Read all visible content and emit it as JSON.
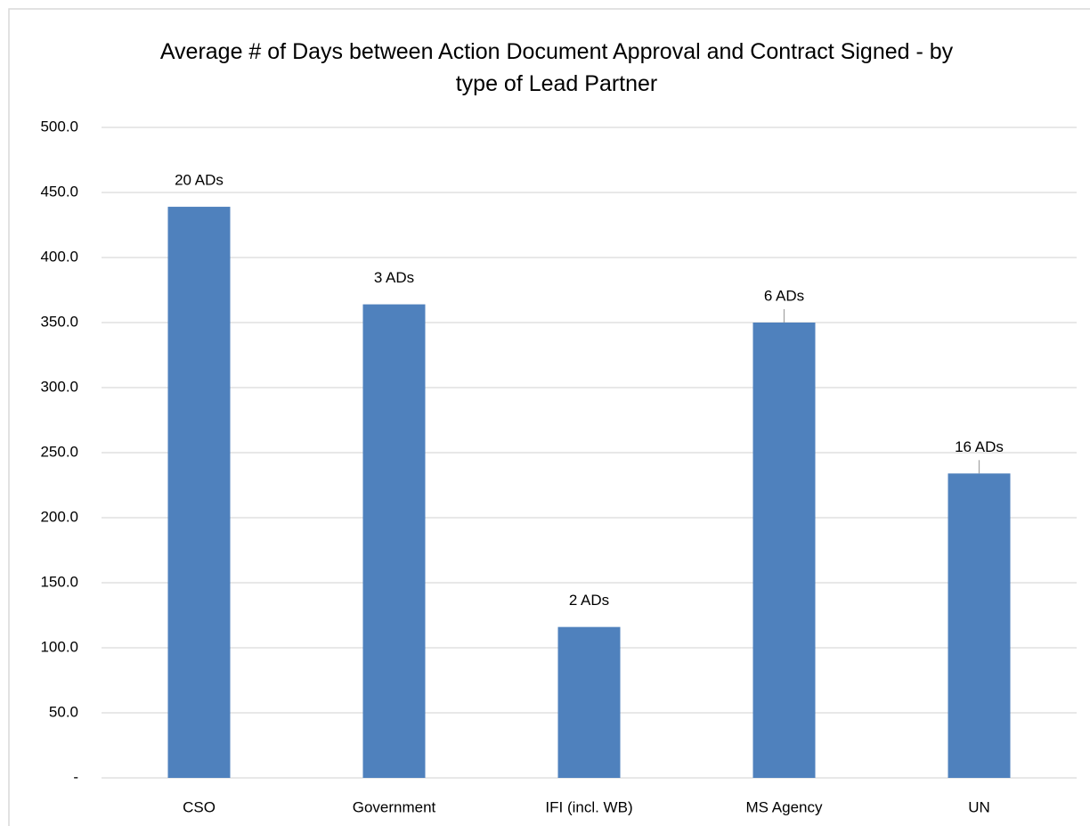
{
  "chart_data": {
    "type": "bar",
    "title": "Average # of Days between Action Document Approval and Contract Signed - by type of Lead Partner",
    "categories": [
      "CSO",
      "Government",
      "IFI (incl. WB)",
      "MS Agency",
      "UN"
    ],
    "values": [
      439,
      364,
      116,
      350,
      234
    ],
    "bar_labels": [
      "20 ADs",
      "3 ADs",
      "2 ADs",
      "6 ADs",
      "16 ADs"
    ],
    "color": "#4f81bd",
    "ylim": [
      0,
      500
    ],
    "yticks": [
      {
        "value": 0,
        "label": "-"
      },
      {
        "value": 50,
        "label": "50.0"
      },
      {
        "value": 100,
        "label": "100.0"
      },
      {
        "value": 150,
        "label": "150.0"
      },
      {
        "value": 200,
        "label": "200.0"
      },
      {
        "value": 250,
        "label": "250.0"
      },
      {
        "value": 300,
        "label": "300.0"
      },
      {
        "value": 350,
        "label": "350.0"
      },
      {
        "value": 400,
        "label": "400.0"
      },
      {
        "value": 450,
        "label": "450.0"
      },
      {
        "value": 500,
        "label": "500.0"
      }
    ],
    "grid": true
  }
}
